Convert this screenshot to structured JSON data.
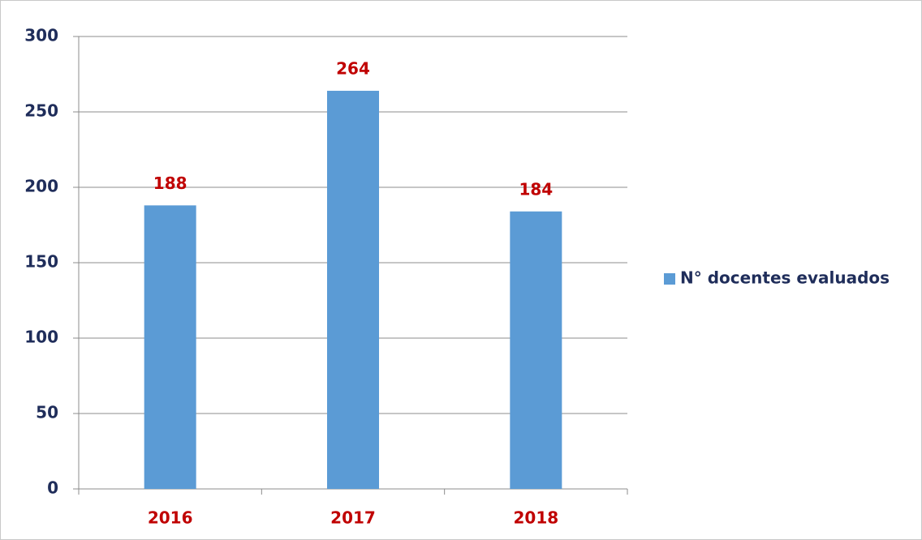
{
  "chart_data": {
    "type": "bar",
    "categories": [
      "2016",
      "2017",
      "2018"
    ],
    "series": [
      {
        "name": "N° docentes evaluados",
        "color": "#5b9bd5",
        "values": [
          188,
          264,
          184
        ]
      }
    ],
    "ylim": [
      0,
      300
    ],
    "yticks": [
      0,
      50,
      100,
      150,
      200,
      250,
      300
    ],
    "grid": true,
    "legend": "right",
    "data_labels": true
  }
}
